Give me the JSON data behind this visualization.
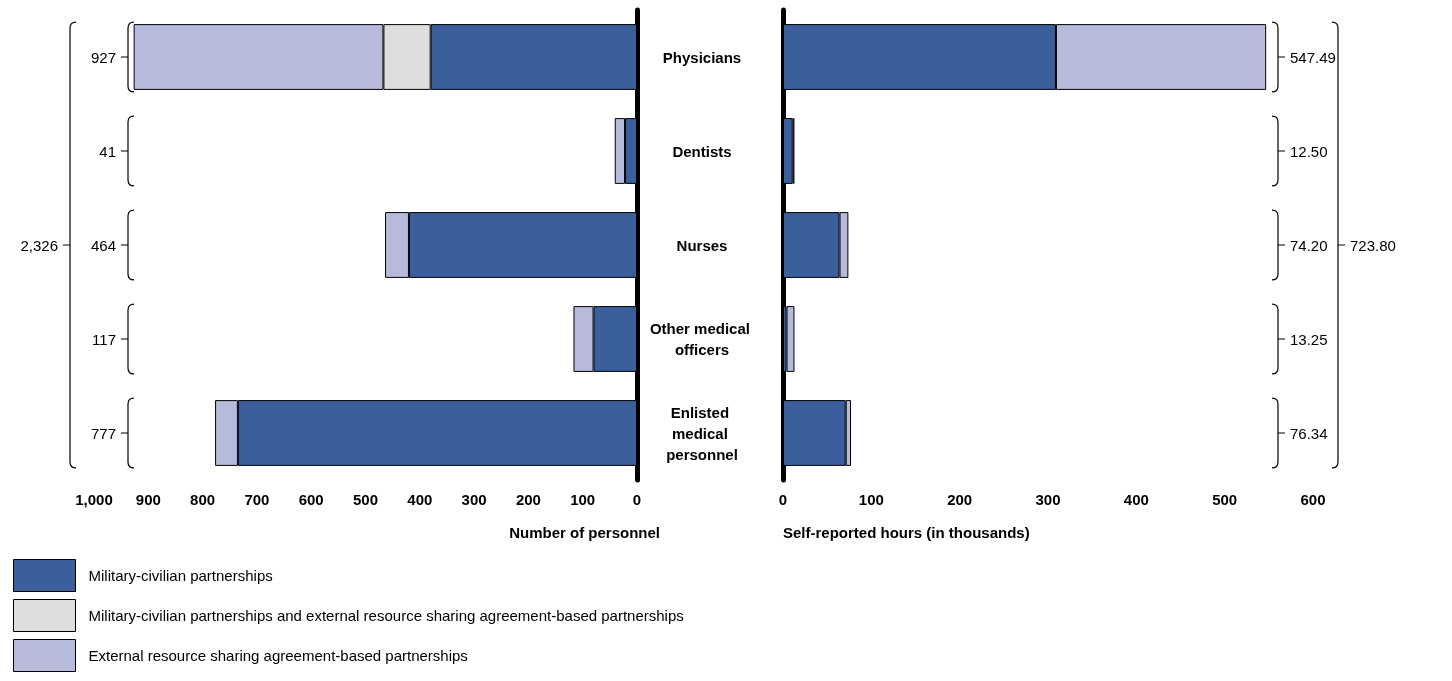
{
  "chart_data": [
    {
      "type": "bar",
      "orientation": "horizontal",
      "stacked": true,
      "xlabel": "Number of personnel",
      "categories": [
        "Physicians",
        "Dentists",
        "Nurses",
        "Other medical officers",
        "Enlisted medical personnel"
      ],
      "series": [
        {
          "name": "Military-civilian partnerships",
          "color": "#3a5f9c",
          "values": [
            380,
            22,
            420,
            80,
            735
          ]
        },
        {
          "name": "Military-civilian partnerships and external resource sharing agreement-based partnerships",
          "color": "#dedede",
          "values": [
            87,
            null,
            null,
            null,
            null
          ]
        },
        {
          "name": "External resource sharing agreement-based partnerships",
          "color": "#b7bbdb",
          "values": [
            460,
            19,
            44,
            37,
            42
          ]
        }
      ],
      "annotations": [
        "927",
        "41",
        "464",
        "117",
        "777",
        "2,326"
      ],
      "xlim": [
        1000,
        0
      ],
      "xticks": [
        {
          "value": 1000,
          "label": "1,000"
        },
        900,
        800,
        700,
        600,
        500,
        400,
        300,
        200,
        100,
        0
      ],
      "grid": false,
      "legend": "bottom left"
    },
    {
      "type": "bar",
      "orientation": "horizontal",
      "stacked": true,
      "xlabel": "Self-reported hours (in thousands)",
      "categories": [
        "Physicians",
        "Dentists",
        "Nurses",
        "Other medical officers",
        "Enlisted medical personnel"
      ],
      "series": [
        {
          "color": "#3a5f9c",
          "values": [
            309,
            11,
            64,
            4,
            71
          ]
        },
        {
          "color": "#b7bbdb",
          "values": [
            238,
            2,
            10,
            9,
            6
          ]
        }
      ],
      "annotations": [
        "547.49",
        "12.50",
        "74.20",
        "13.25",
        "76.34",
        "723.80"
      ],
      "xlim": [
        0,
        600
      ],
      "xticks": [
        0,
        100,
        200,
        300,
        400,
        500,
        600
      ],
      "grid": false,
      "tick_labels": "x"
    }
  ]
}
